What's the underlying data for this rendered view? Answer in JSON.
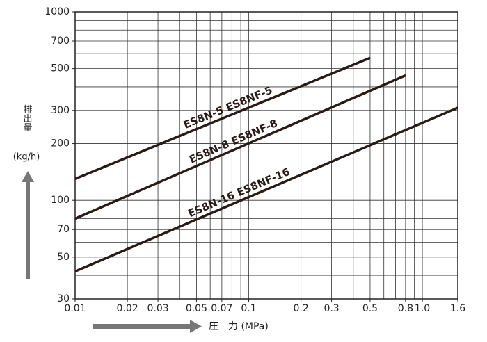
{
  "chart_data": {
    "type": "line",
    "log_x": true,
    "log_y": true,
    "grid": true,
    "xlabel": "圧　力 (MPa)",
    "ylabel": "排出量",
    "yunit": "(kg/h)",
    "xlim": [
      0.01,
      1.6
    ],
    "ylim": [
      30,
      1000
    ],
    "xticks": [
      0.01,
      0.02,
      0.03,
      0.05,
      0.07,
      0.1,
      0.2,
      0.3,
      0.5,
      0.8,
      {
        "value": 1,
        "label": "1.0"
      },
      1.6
    ],
    "yticks": [
      30,
      50,
      70,
      100,
      200,
      300,
      500,
      700,
      1000
    ],
    "series": [
      {
        "name": "ES8N-5  ES8NF-5",
        "color": "#2a1a16",
        "x": [
          0.01,
          0.5
        ],
        "values": [
          130,
          570
        ]
      },
      {
        "name": "ES8N-8  ES8NF-8",
        "color": "#2a1a16",
        "x": [
          0.01,
          0.8
        ],
        "values": [
          80,
          460
        ]
      },
      {
        "name": "ES8N-16  ES8NF-16",
        "color": "#2a1a16",
        "x": [
          0.01,
          1.6
        ],
        "values": [
          42,
          310
        ]
      }
    ]
  }
}
